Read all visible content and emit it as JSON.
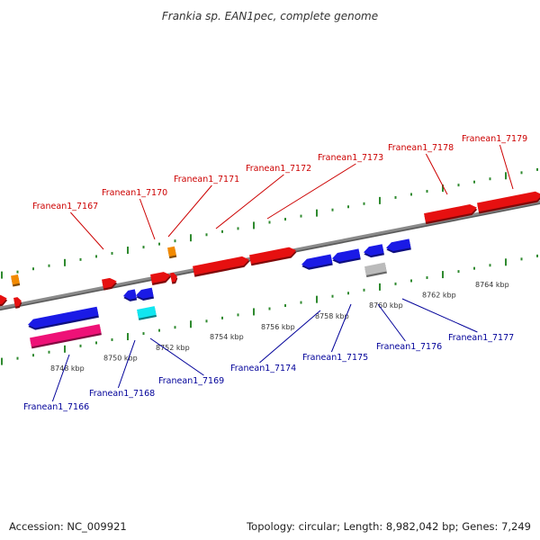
{
  "title": "Frankia sp. EAN1pec, complete genome",
  "footer": {
    "accession": "Accession: NC_009921",
    "summary": "Topology: circular; Length: 8,982,042 bp; Genes: 7,249"
  },
  "colors": {
    "backbone": "#8a8a8a",
    "dots": "#2f8a2f",
    "forward_gene": "#e61010",
    "reverse_gene": "#1a1ae6",
    "rna_pink": "#ee1177",
    "rna_cyan": "#11e6f0",
    "misc_orange": "#f28a00",
    "misc_gray": "#bbbbbb",
    "label_top": "#cc0000",
    "label_bottom": "#000099"
  },
  "ticks": [
    {
      "label": "8748 kbp",
      "t": 0.085
    },
    {
      "label": "8750 kbp",
      "t": 0.19
    },
    {
      "label": "8752 kbp",
      "t": 0.295
    },
    {
      "label": "8754 kbp",
      "t": 0.4
    },
    {
      "label": "8756 kbp",
      "t": 0.5
    },
    {
      "label": "8758 kbp",
      "t": 0.598
    },
    {
      "label": "8760 kbp",
      "t": 0.695
    },
    {
      "label": "8762 kbp",
      "t": 0.793
    },
    {
      "label": "8764 kbp",
      "t": 0.89
    }
  ],
  "gene_labels_top": [
    "Franean1_7167",
    "Franean1_7170",
    "Franean1_7171",
    "Franean1_7172",
    "Franean1_7173",
    "Franean1_7178",
    "Franean1_7179"
  ],
  "gene_labels_bottom": [
    "Franean1_7166",
    "Franean1_7168",
    "Franean1_7169",
    "Franean1_7174",
    "Franean1_7175",
    "Franean1_7176",
    "Franean1_7177"
  ]
}
